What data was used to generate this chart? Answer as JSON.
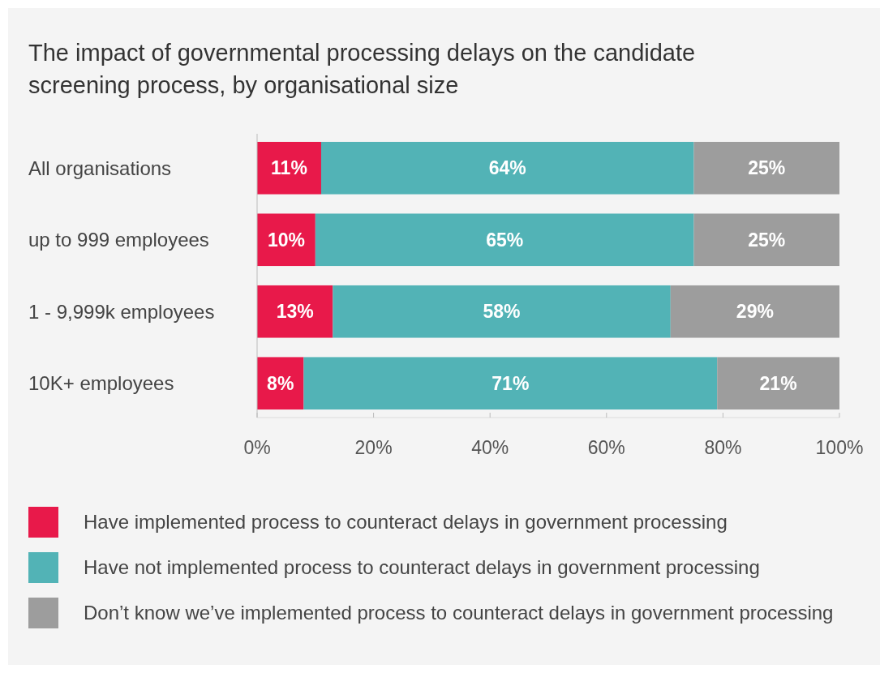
{
  "chart_data": {
    "type": "bar",
    "orientation": "horizontal",
    "stacked": true,
    "title": "The impact of governmental processing delays on the candidate screening process, by organisational size",
    "categories": [
      "All organisations",
      "up to 999 employees",
      "1 - 9,999k employees",
      "10K+ employees"
    ],
    "series": [
      {
        "name": "Have implemented process to counteract delays in government processing",
        "color": "#e8194a",
        "values": [
          11,
          10,
          13,
          8
        ],
        "value_labels": [
          "11%",
          "10%",
          "13%",
          "8%"
        ]
      },
      {
        "name": "Have not implemented process to counteract delays in government processing",
        "color": "#52b3b6",
        "values": [
          64,
          65,
          58,
          71
        ],
        "value_labels": [
          "64%",
          "65%",
          "58%",
          "71%"
        ]
      },
      {
        "name": "Don’t know we’ve implemented process to counteract delays in government processing",
        "color": "#9d9d9d",
        "values": [
          25,
          25,
          29,
          21
        ],
        "value_labels": [
          "25%",
          "25%",
          "29%",
          "21%"
        ]
      }
    ],
    "xlim": [
      0,
      100
    ],
    "xticks": [
      {
        "value": 0,
        "label": "0%"
      },
      {
        "value": 20,
        "label": "20%"
      },
      {
        "value": 40,
        "label": "40%"
      },
      {
        "value": 60,
        "label": "60%"
      },
      {
        "value": 80,
        "label": "80%"
      },
      {
        "value": 100,
        "label": "100%"
      }
    ],
    "legend": "bottom",
    "grid": false
  }
}
